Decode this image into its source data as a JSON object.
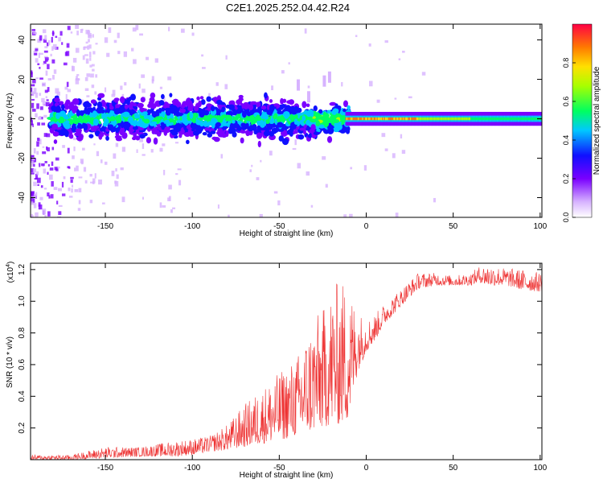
{
  "figure": {
    "title": "C2E1.2025.252.04.42.R24"
  },
  "chart_data": [
    {
      "type": "heatmap",
      "xlabel": "Height of straight line (km)",
      "ylabel": "Frequency (Hz)",
      "xlim": [
        -193,
        101
      ],
      "ylim": [
        -50,
        48
      ],
      "xticks": [
        -150,
        -100,
        -50,
        0,
        50,
        100
      ],
      "yticks": [
        -40,
        -20,
        0,
        20,
        40
      ],
      "colorbar": {
        "label": "Normalized spectral amplitude",
        "range": [
          0,
          1
        ],
        "ticks": [
          0.0,
          0.2,
          0.4,
          0.6,
          0.8
        ]
      },
      "ridge": {
        "description": "narrow band of high amplitude near 0 Hz",
        "noisy_region_km": [
          -193,
          -20
        ],
        "stable_region_km": [
          -10,
          101
        ],
        "peak_amplitude_near_km": [
          -15,
          30
        ]
      }
    },
    {
      "type": "line",
      "xlabel": "Height of straight line (km)",
      "ylabel": "SNR (10 * v/v)",
      "y_scale_label": "(x10",
      "y_scale_exp": "4",
      "xlim": [
        -193,
        101
      ],
      "ylim": [
        0,
        1.24
      ],
      "xticks": [
        -150,
        -100,
        -50,
        0,
        50,
        100
      ],
      "yticks": [
        0.2,
        0.4,
        0.6,
        0.8,
        1.0,
        1.2
      ],
      "color": "#ee3333",
      "envelope": {
        "x": [
          -193,
          -170,
          -150,
          -130,
          -110,
          -100,
          -90,
          -80,
          -70,
          -60,
          -50,
          -40,
          -30,
          -25,
          -20,
          -15,
          -10,
          -5,
          0,
          5,
          10,
          20,
          30,
          40,
          50,
          60,
          65,
          70,
          80,
          90,
          101
        ],
        "low": [
          0.0,
          0.0,
          0.01,
          0.02,
          0.02,
          0.03,
          0.05,
          0.06,
          0.08,
          0.1,
          0.12,
          0.15,
          0.18,
          0.2,
          0.22,
          0.22,
          0.25,
          0.55,
          0.68,
          0.75,
          0.85,
          0.97,
          1.08,
          1.1,
          1.1,
          1.1,
          1.12,
          1.1,
          1.1,
          1.07,
          1.06
        ],
        "high": [
          0.03,
          0.03,
          0.08,
          0.08,
          0.12,
          0.13,
          0.15,
          0.22,
          0.35,
          0.45,
          0.55,
          0.65,
          0.9,
          0.95,
          1.08,
          1.15,
          1.1,
          0.95,
          0.88,
          0.92,
          0.98,
          1.08,
          1.18,
          1.18,
          1.16,
          1.18,
          1.22,
          1.23,
          1.21,
          1.2,
          1.18
        ]
      }
    }
  ]
}
